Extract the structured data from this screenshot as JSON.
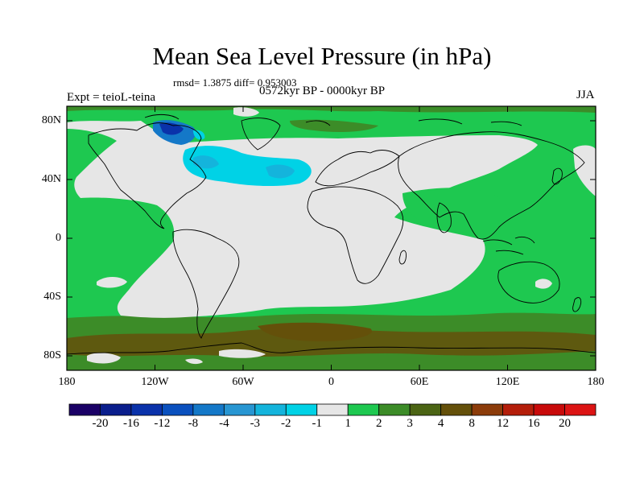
{
  "title": "Mean Sea Level Pressure (in hPa)",
  "stats": "rmsd= 1.3875 diff= 0.953003",
  "left_label": "Expt = teioL-teina",
  "center_label": "0572kyr BP - 0000kyr BP",
  "right_label": "JJA",
  "y_axis_labels": [
    "80N",
    "40N",
    "0",
    "40S",
    "80S"
  ],
  "x_axis_labels": [
    "180",
    "120W",
    "60W",
    "0",
    "60E",
    "120E",
    "180"
  ],
  "colorbar": {
    "labels": [
      "-20",
      "-16",
      "-12",
      "-8",
      "-4",
      "-3",
      "-2",
      "-1",
      "1",
      "2",
      "3",
      "4",
      "8",
      "12",
      "16",
      "20"
    ],
    "colors": [
      "#1a0066",
      "#0a1e8c",
      "#0a32aa",
      "#0a50be",
      "#1478c8",
      "#2896d2",
      "#14b4dc",
      "#00d2e6",
      "#e6e6e6",
      "#1ec850",
      "#3c8c28",
      "#4b6414",
      "#64500a",
      "#8c3c0a",
      "#b41e0a",
      "#c80a0a",
      "#dc1414"
    ]
  },
  "colors": {
    "ocean_green": "#1ec850",
    "neutral": "#e6e6e6",
    "dark_green": "#3c8c28",
    "olive": "#64500a",
    "light_blue": "#00d2e6",
    "blue": "#14b4dc",
    "dark_blue": "#0a32aa"
  }
}
